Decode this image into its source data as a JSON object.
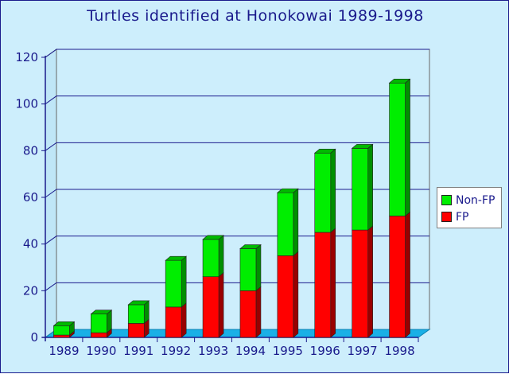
{
  "chart_data": {
    "type": "bar",
    "stacked": true,
    "title": "Turtles identified at Honokowai 1989-1998",
    "xlabel": "",
    "ylabel": "",
    "categories": [
      "1989",
      "1990",
      "1991",
      "1992",
      "1993",
      "1994",
      "1995",
      "1996",
      "1997",
      "1998"
    ],
    "series": [
      {
        "name": "FP",
        "color": "#ff0000",
        "values": [
          1,
          2,
          6,
          13,
          26,
          20,
          35,
          45,
          46,
          52
        ]
      },
      {
        "name": "Non-FP",
        "color": "#00ee00",
        "values": [
          4,
          8,
          8,
          20,
          16,
          18,
          27,
          34,
          35,
          57
        ]
      }
    ],
    "ylim": [
      0,
      120
    ],
    "yticks": [
      "0",
      "20",
      "40",
      "60",
      "80",
      "100",
      "120"
    ],
    "grid": true,
    "legend_position": "right",
    "legend_order": [
      "Non-FP",
      "FP"
    ],
    "colors": {
      "plot_background": "#cdeefc",
      "floor": "#1ab0e6",
      "gridline": "#1a1a8c",
      "text": "#1a1a8c"
    }
  }
}
